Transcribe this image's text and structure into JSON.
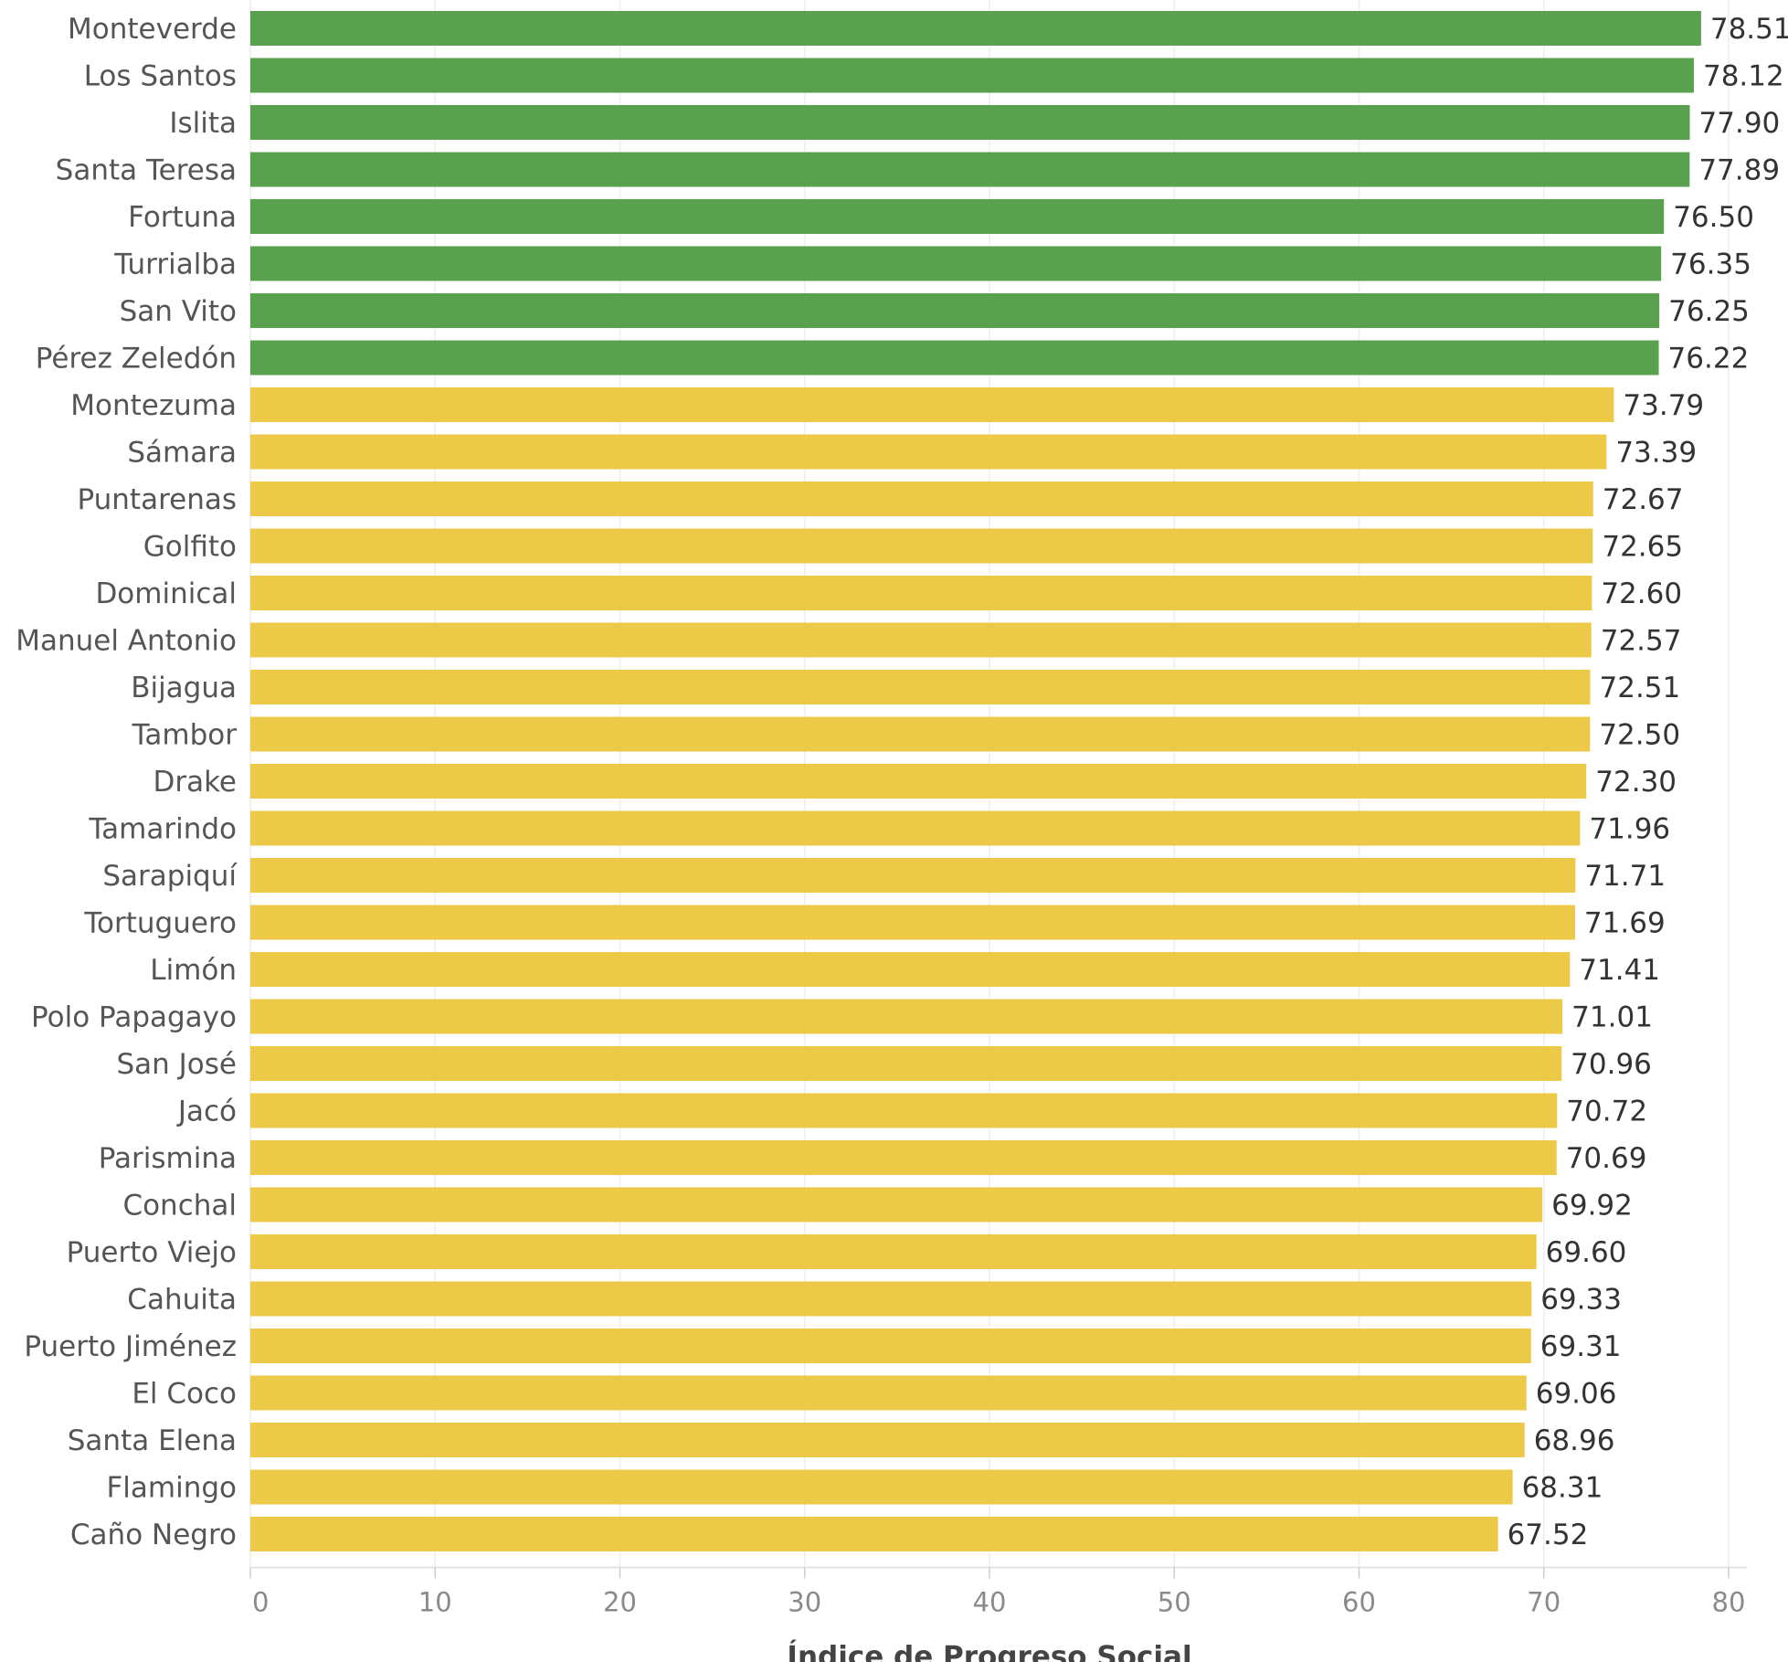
{
  "chart_data": {
    "type": "bar",
    "orientation": "horizontal",
    "xlabel": "Índice de Progreso Social",
    "ylabel": "",
    "xlim": [
      0,
      80
    ],
    "xticks": [
      0,
      10,
      20,
      30,
      40,
      50,
      60,
      70,
      80
    ],
    "grid": true,
    "colors": {
      "top": "#59a14f",
      "rest": "#edc948"
    },
    "categories": [
      "Monteverde",
      "Los Santos",
      "Islita",
      "Santa Teresa",
      "Fortuna",
      "Turrialba",
      "San Vito",
      "Pérez Zeledón",
      "Montezuma",
      "Sámara",
      "Puntarenas",
      "Golfito",
      "Dominical",
      "Manuel Antonio",
      "Bijagua",
      "Tambor",
      "Drake",
      "Tamarindo",
      "Sarapiquí",
      "Tortuguero",
      "Limón",
      "Polo Papagayo",
      "San José",
      "Jacó",
      "Parismina",
      "Conchal",
      "Puerto Viejo",
      "Cahuita",
      "Puerto Jiménez",
      "El Coco",
      "Santa Elena",
      "Flamingo",
      "Caño Negro"
    ],
    "values": [
      78.51,
      78.12,
      77.9,
      77.89,
      76.5,
      76.35,
      76.25,
      76.22,
      73.79,
      73.39,
      72.67,
      72.65,
      72.6,
      72.57,
      72.51,
      72.5,
      72.3,
      71.96,
      71.71,
      71.69,
      71.41,
      71.01,
      70.96,
      70.72,
      70.69,
      69.92,
      69.6,
      69.33,
      69.31,
      69.06,
      68.96,
      68.31,
      67.52
    ],
    "value_labels": [
      "78.51",
      "78.12",
      "77.90",
      "77.89",
      "76.50",
      "76.35",
      "76.25",
      "76.22",
      "73.79",
      "73.39",
      "72.67",
      "72.65",
      "72.60",
      "72.57",
      "72.51",
      "72.50",
      "72.30",
      "71.96",
      "71.71",
      "71.69",
      "71.41",
      "71.01",
      "70.96",
      "70.72",
      "70.69",
      "69.92",
      "69.60",
      "69.33",
      "69.31",
      "69.06",
      "68.96",
      "68.31",
      "67.52"
    ],
    "bar_color_group": [
      "top",
      "top",
      "top",
      "top",
      "top",
      "top",
      "top",
      "top",
      "rest",
      "rest",
      "rest",
      "rest",
      "rest",
      "rest",
      "rest",
      "rest",
      "rest",
      "rest",
      "rest",
      "rest",
      "rest",
      "rest",
      "rest",
      "rest",
      "rest",
      "rest",
      "rest",
      "rest",
      "rest",
      "rest",
      "rest",
      "rest",
      "rest"
    ]
  }
}
